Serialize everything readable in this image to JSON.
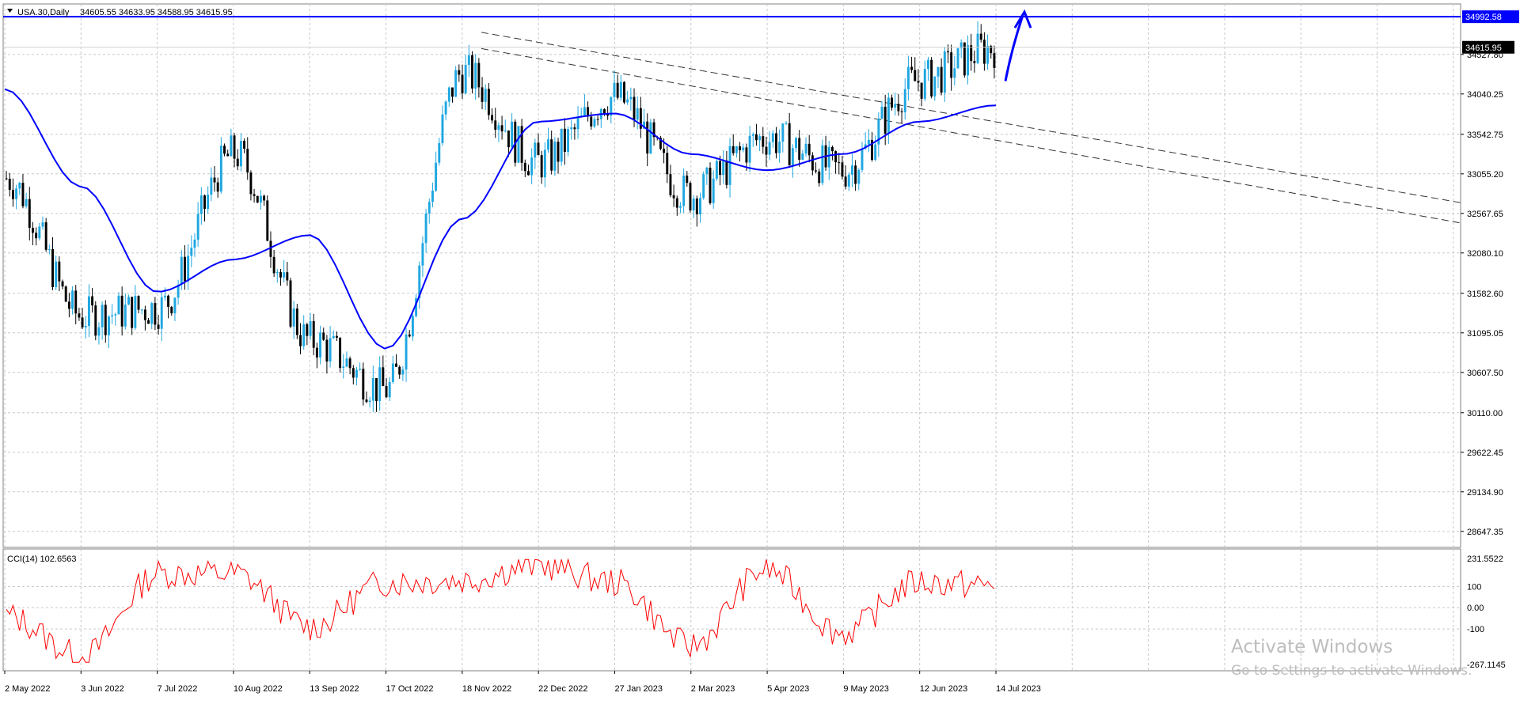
{
  "header": {
    "symbol": "USA.30,Daily",
    "ohlc": "34605.55 34633.95 34588.95 34615.95"
  },
  "indicator": {
    "label": "CCI(14) 102.6563",
    "ticks": [
      "231.5522",
      "100",
      "0.00",
      "-100",
      "-267.1145"
    ]
  },
  "price_axis": {
    "ticks": [
      "34527.80",
      "34040.25",
      "33542.75",
      "33055.20",
      "32567.65",
      "32080.10",
      "31582.60",
      "31095.05",
      "30607.50",
      "30110.00",
      "29622.45",
      "29134.90",
      "28647.35"
    ]
  },
  "level": {
    "label": "34992.58",
    "color": "#0000ff"
  },
  "last_price": {
    "label": "34615.95"
  },
  "x_axis": {
    "labels": [
      "2 May 2022",
      "3 Jun 2022",
      "7 Jul 2022",
      "10 Aug 2022",
      "13 Sep 2022",
      "17 Oct 2022",
      "18 Nov 2022",
      "22 Dec 2022",
      "27 Jan 2023",
      "2 Mar 2023",
      "5 Apr 2023",
      "9 May 2023",
      "12 Jun 2023",
      "14 Jul 2023"
    ]
  },
  "watermark": {
    "line1": "Activate Windows",
    "line2": "Go to Settings to activate Windows."
  },
  "colors": {
    "bull": "#1ea7e1",
    "bear": "#000000",
    "ma": "#0000ff",
    "cci": "#ff0000",
    "grid": "#c8c8c8"
  },
  "chart_data": [
    {
      "type": "line",
      "title": "USA.30,Daily",
      "x": [
        "2 May 2022",
        "3 Jun 2022",
        "7 Jul 2022",
        "10 Aug 2022",
        "13 Sep 2022",
        "17 Oct 2022",
        "18 Nov 2022",
        "22 Dec 2022",
        "27 Jan 2023",
        "2 Mar 2023",
        "5 Apr 2023",
        "9 May 2023",
        "12 Jun 2023",
        "14 Jul 2023"
      ],
      "series": [
        {
          "name": "USA.30 Close",
          "values": [
            33000,
            31300,
            31400,
            33300,
            31000,
            30400,
            34300,
            33200,
            34000,
            32800,
            33500,
            33100,
            34200,
            34615.95
          ]
        },
        {
          "name": "Moving Average",
          "values": [
            34100,
            32900,
            31600,
            32000,
            32300,
            30900,
            32500,
            33700,
            33800,
            33300,
            33100,
            33300,
            33700,
            33900
          ]
        }
      ],
      "horizontal_line": 34992.58,
      "ylim": [
        28450,
        35150
      ],
      "grid": true
    },
    {
      "type": "line",
      "title": "CCI(14) 102.6563",
      "x": [
        "2 May 2022",
        "3 Jun 2022",
        "7 Jul 2022",
        "10 Aug 2022",
        "13 Sep 2022",
        "17 Oct 2022",
        "18 Nov 2022",
        "22 Dec 2022",
        "27 Jan 2023",
        "2 Mar 2023",
        "5 Apr 2023",
        "9 May 2023",
        "12 Jun 2023",
        "14 Jul 2023"
      ],
      "series": [
        {
          "name": "CCI(14)",
          "values": [
            -40,
            -230,
            160,
            160,
            -90,
            120,
            130,
            200,
            120,
            -180,
            180,
            -120,
            120,
            102.66
          ]
        }
      ],
      "ylim": [
        -267.1145,
        231.5522
      ],
      "grid": true
    }
  ]
}
